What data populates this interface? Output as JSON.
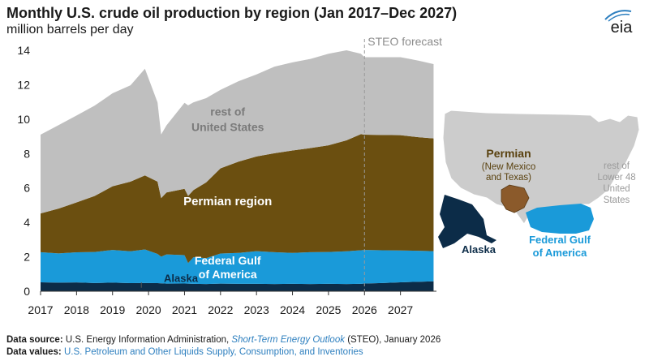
{
  "title": "Monthly U.S. crude oil production by region (Jan 2017–Dec 2027)",
  "subtitle": "million barrels per day",
  "logo_text": "eia",
  "colors": {
    "alaska": "#0c2c48",
    "gulf": "#1a9ad9",
    "permian": "#6b4f10",
    "rest": "#bfbfbf",
    "map_us": "#cccccc",
    "map_permian": "#8b5a2b",
    "forecast_line": "#9a9a9a",
    "text_dark": "#1a1a1a",
    "link_blue": "#2d7fbf"
  },
  "chart_data": {
    "type": "area",
    "stacked": true,
    "title": "Monthly U.S. crude oil production by region (Jan 2017–Dec 2027)",
    "ylabel": "million barrels per day",
    "xlabel": "",
    "x": [
      2017.0,
      2017.5,
      2018.0,
      2018.5,
      2019.0,
      2019.5,
      2019.9,
      2020.25,
      2020.35,
      2020.5,
      2021.0,
      2021.1,
      2021.25,
      2021.6,
      2022.0,
      2022.5,
      2023.0,
      2023.5,
      2024.0,
      2024.5,
      2025.0,
      2025.5,
      2025.9,
      2026.0,
      2026.5,
      2027.0,
      2027.5,
      2027.92
    ],
    "x_ticks": [
      "2017",
      "2018",
      "2019",
      "2020",
      "2021",
      "2022",
      "2023",
      "2024",
      "2025",
      "2026",
      "2027"
    ],
    "y_ticks": [
      "0",
      "2",
      "4",
      "6",
      "8",
      "10",
      "12",
      "14"
    ],
    "ylim": [
      0,
      14
    ],
    "xlim": [
      2017,
      2028
    ],
    "forecast_start": 2026.0,
    "forecast_label": "STEO forecast",
    "series": [
      {
        "name": "Alaska",
        "label": "Alaska",
        "values": [
          0.52,
          0.5,
          0.51,
          0.48,
          0.5,
          0.47,
          0.48,
          0.47,
          0.46,
          0.44,
          0.45,
          0.44,
          0.43,
          0.42,
          0.44,
          0.43,
          0.43,
          0.42,
          0.43,
          0.42,
          0.43,
          0.42,
          0.43,
          0.45,
          0.48,
          0.52,
          0.55,
          0.58
        ]
      },
      {
        "name": "Federal Gulf of America",
        "label_lines": [
          "Federal Gulf",
          "of America"
        ],
        "values": [
          1.75,
          1.7,
          1.75,
          1.8,
          1.9,
          1.85,
          1.95,
          1.7,
          1.55,
          1.7,
          1.65,
          1.2,
          1.55,
          1.5,
          1.75,
          1.8,
          1.9,
          1.85,
          1.8,
          1.85,
          1.85,
          1.9,
          1.95,
          1.95,
          1.9,
          1.85,
          1.8,
          1.75
        ]
      },
      {
        "name": "Permian region",
        "label": "Permian region",
        "values": [
          2.25,
          2.6,
          2.9,
          3.25,
          3.7,
          4.05,
          4.3,
          4.2,
          3.4,
          3.6,
          3.85,
          3.9,
          3.9,
          4.4,
          4.95,
          5.3,
          5.5,
          5.75,
          5.95,
          6.05,
          6.2,
          6.45,
          6.75,
          6.7,
          6.7,
          6.7,
          6.6,
          6.55
        ]
      },
      {
        "name": "rest of United States",
        "label_lines": [
          "rest of",
          "United States"
        ],
        "values": [
          4.58,
          4.85,
          5.05,
          5.25,
          5.4,
          5.6,
          6.2,
          4.6,
          3.7,
          3.9,
          5.0,
          5.26,
          5.1,
          4.9,
          4.56,
          4.67,
          4.77,
          5.03,
          5.12,
          5.18,
          5.32,
          5.23,
          4.67,
          4.5,
          4.52,
          4.53,
          4.45,
          4.32
        ]
      }
    ]
  },
  "map": {
    "permian_title": "Permian",
    "permian_sub_lines": [
      "(New Mexico",
      "and Texas)"
    ],
    "rest_lines": [
      "rest of",
      "Lower 48",
      "United",
      "States"
    ],
    "alaska_label": "Alaska",
    "gulf_lines": [
      "Federal Gulf",
      "of America"
    ]
  },
  "footer": {
    "source_label": "Data source:",
    "source_text_1": "U.S. Energy Information Administration,",
    "source_italic": "Short-Term Energy Outlook",
    "source_text_2": "(STEO), January 2026",
    "values_label": "Data values:",
    "values_link": "U.S. Petroleum and Other Liquids Supply, Consumption, and Inventories"
  }
}
